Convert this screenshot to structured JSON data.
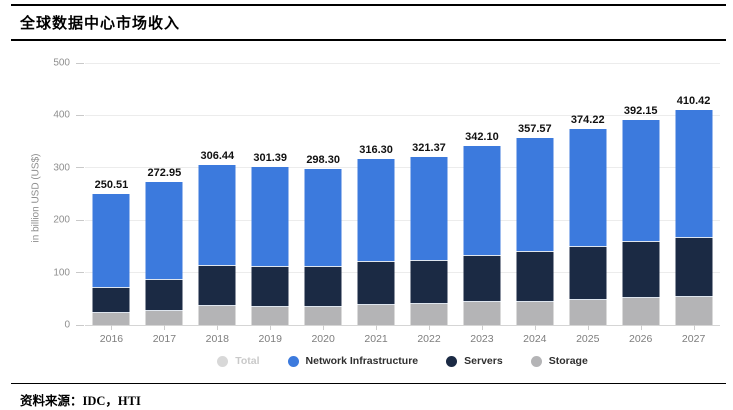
{
  "page": {
    "title": "全球数据中心市场收入",
    "source_label": "资料来源：IDC，HTI"
  },
  "chart_data": {
    "type": "bar",
    "stacked": true,
    "title": "全球数据中心市场收入",
    "xlabel": "",
    "ylabel": "in billion USD (US$)",
    "ylim": [
      0,
      500
    ],
    "yticks": [
      0,
      100,
      200,
      300,
      400,
      500
    ],
    "grid": true,
    "legend_position": "bottom",
    "categories": [
      "2016",
      "2017",
      "2018",
      "2019",
      "2020",
      "2021",
      "2022",
      "2023",
      "2024",
      "2025",
      "2026",
      "2027"
    ],
    "total_labels": [
      "250.51",
      "272.95",
      "306.44",
      "301.39",
      "298.30",
      "316.30",
      "321.37",
      "342.10",
      "357.57",
      "374.22",
      "392.15",
      "410.42"
    ],
    "series": [
      {
        "name": "Storage",
        "color": "#b4b4b6",
        "values": [
          24,
          28,
          38,
          37,
          37,
          40,
          42,
          45,
          46,
          49,
          53,
          56
        ]
      },
      {
        "name": "Servers",
        "color": "#1b2a44",
        "values": [
          48,
          60,
          77,
          76,
          76,
          82,
          83,
          89,
          96,
          101,
          107,
          113
        ]
      },
      {
        "name": "Network Infrastructure",
        "color": "#3c7add",
        "values": [
          178.51,
          184.95,
          191.44,
          188.39,
          185.3,
          194.3,
          196.37,
          208.1,
          215.57,
          224.22,
          232.15,
          241.42
        ]
      }
    ],
    "legend": [
      {
        "label": "Total",
        "color": "#d8d8d8",
        "disabled": true
      },
      {
        "label": "Network Infrastructure",
        "color": "#3c7add",
        "disabled": false
      },
      {
        "label": "Servers",
        "color": "#1b2a44",
        "disabled": false
      },
      {
        "label": "Storage",
        "color": "#b4b4b6",
        "disabled": false
      }
    ],
    "colors": {
      "gridline": "#ececec",
      "baseline": "#d5d5d5",
      "axis_text": "#8e8e8e"
    }
  }
}
